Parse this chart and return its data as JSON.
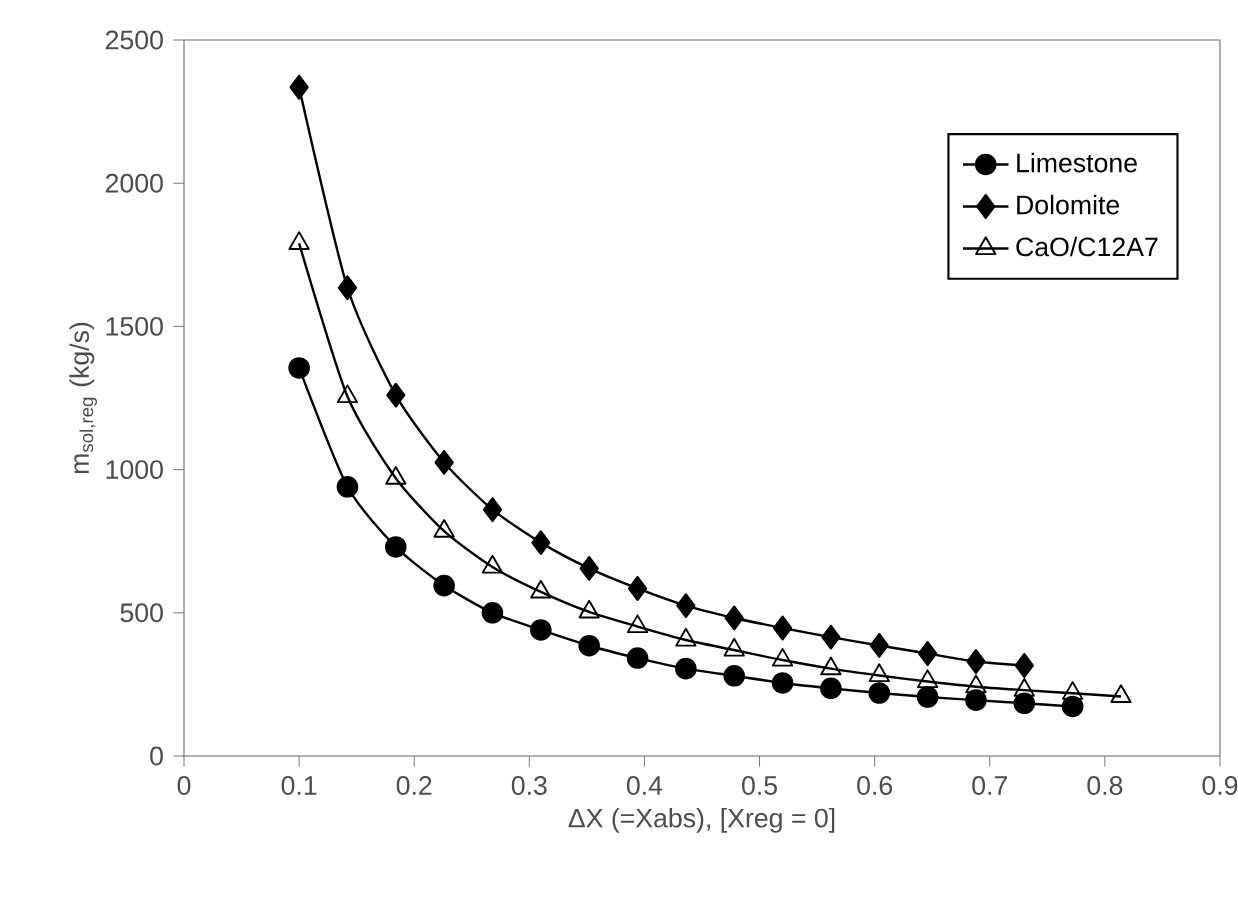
{
  "chart_data": {
    "type": "line",
    "xlabel": "ΔX (=Xabs), [Xreg = 0]",
    "ylabel": "m$_{sol,reg}$ (kg/s)",
    "xlim": [
      0,
      0.9
    ],
    "ylim": [
      0,
      2500
    ],
    "xticks": [
      0,
      0.1,
      0.2,
      0.3,
      0.4,
      0.5,
      0.6,
      0.7,
      0.8,
      0.9
    ],
    "yticks": [
      0,
      500,
      1000,
      1500,
      2000,
      2500
    ],
    "grid": false,
    "legend": "top right",
    "series": [
      {
        "name": "Limestone",
        "color": "#000000",
        "marker": "circle",
        "x": [
          0.1,
          0.142,
          0.184,
          0.226,
          0.268,
          0.31,
          0.352,
          0.394,
          0.436,
          0.478,
          0.52,
          0.562,
          0.604,
          0.646,
          0.688,
          0.73,
          0.772
        ],
        "values": [
          1355,
          940,
          730,
          595,
          500,
          440,
          385,
          342,
          305,
          280,
          255,
          236,
          220,
          206,
          195,
          184,
          173
        ]
      },
      {
        "name": "Dolomite",
        "color": "#000000",
        "marker": "diamond",
        "x": [
          0.1,
          0.142,
          0.184,
          0.226,
          0.268,
          0.31,
          0.352,
          0.394,
          0.436,
          0.478,
          0.52,
          0.562,
          0.604,
          0.646,
          0.688,
          0.73
        ],
        "values": [
          2335,
          1635,
          1260,
          1025,
          860,
          745,
          655,
          585,
          525,
          482,
          447,
          415,
          386,
          358,
          330,
          316
        ]
      },
      {
        "name": "CaO/C12A7",
        "color": "#000000",
        "marker": "triangle",
        "x": [
          0.1,
          0.142,
          0.184,
          0.226,
          0.268,
          0.31,
          0.352,
          0.394,
          0.436,
          0.478,
          0.52,
          0.562,
          0.604,
          0.646,
          0.688,
          0.73,
          0.772,
          0.814
        ],
        "values": [
          1790,
          1255,
          970,
          785,
          660,
          573,
          503,
          452,
          405,
          370,
          335,
          305,
          281,
          260,
          242,
          230,
          219,
          208
        ]
      }
    ]
  }
}
